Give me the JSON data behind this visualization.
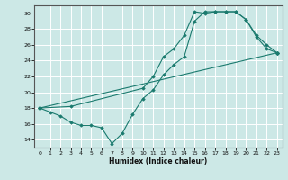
{
  "xlabel": "Humidex (Indice chaleur)",
  "bg_color": "#cce8e6",
  "grid_color": "#ffffff",
  "line_color": "#1a7a6e",
  "xlim": [
    -0.5,
    23.5
  ],
  "ylim": [
    13.0,
    31.0
  ],
  "xticks": [
    0,
    1,
    2,
    3,
    4,
    5,
    6,
    7,
    8,
    9,
    10,
    11,
    12,
    13,
    14,
    15,
    16,
    17,
    18,
    19,
    20,
    21,
    22,
    23
  ],
  "yticks": [
    14,
    16,
    18,
    20,
    22,
    24,
    26,
    28,
    30
  ],
  "line1_x": [
    0,
    1,
    2,
    3,
    4,
    5,
    6,
    7,
    8,
    9,
    10,
    11,
    12,
    13,
    14,
    15,
    16,
    17,
    18,
    19,
    20,
    21,
    22,
    23
  ],
  "line1_y": [
    18,
    17.5,
    17.0,
    16.2,
    15.8,
    15.8,
    15.5,
    13.5,
    14.8,
    17.2,
    19.2,
    20.3,
    22.2,
    23.5,
    24.5,
    29.0,
    30.2,
    30.2,
    30.2,
    30.2,
    29.2,
    27.0,
    25.5,
    25.0
  ],
  "line2_x": [
    0,
    3,
    10,
    11,
    12,
    13,
    14,
    15,
    16,
    17,
    18,
    19,
    20,
    21,
    22,
    23
  ],
  "line2_y": [
    18,
    18.2,
    20.5,
    22.0,
    24.5,
    25.5,
    27.2,
    30.2,
    30.0,
    30.2,
    30.2,
    30.2,
    29.2,
    27.2,
    26.0,
    25.0
  ],
  "line3_x": [
    0,
    23
  ],
  "line3_y": [
    18,
    25.0
  ]
}
